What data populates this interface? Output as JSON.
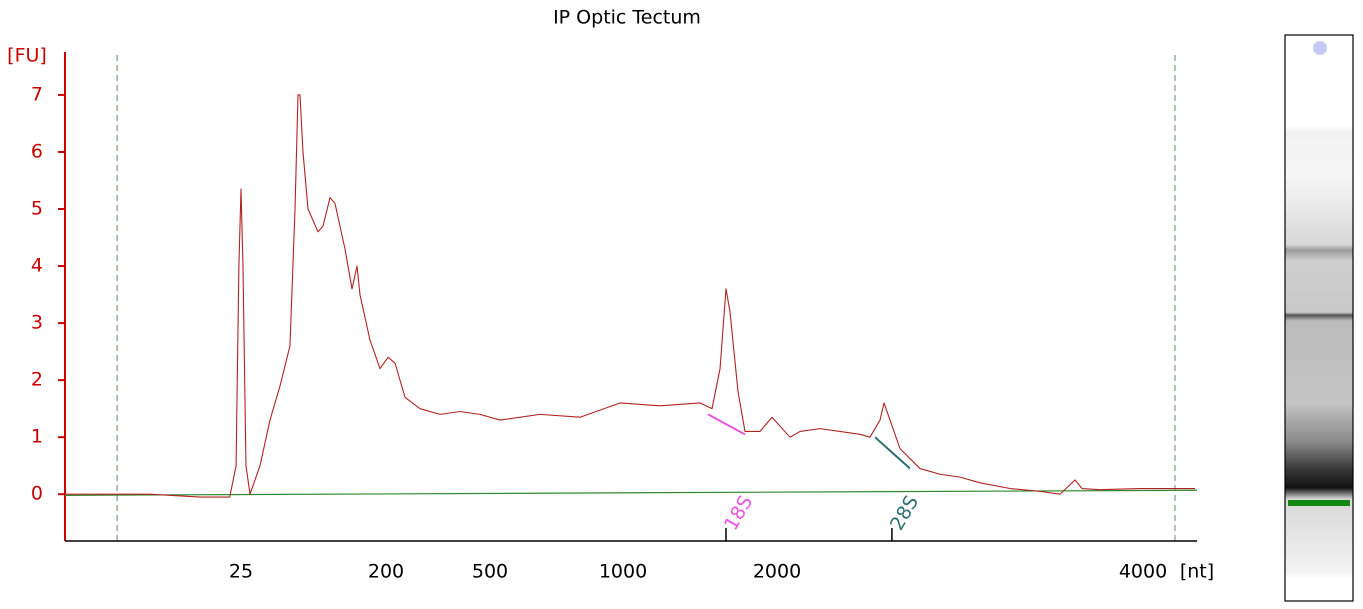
{
  "chart_data": {
    "type": "line",
    "title": "IP Optic Tectum",
    "ylabel": "[FU]",
    "xlabel": "[nt]",
    "ylabel_color": "#cc0000",
    "xlim": [
      0,
      4500
    ],
    "xticks": [
      25,
      200,
      500,
      1000,
      2000,
      4000
    ],
    "ylim": [
      -0.82,
      7.7
    ],
    "yticks": [
      0,
      1,
      2,
      3,
      4,
      5,
      6,
      7
    ],
    "marker_lines": [
      7.4,
      4296
    ],
    "marker_color": "#5a8f5a",
    "baseline": {
      "x": [
        0,
        4500
      ],
      "values": [
        -0.02,
        0.07
      ],
      "color": "#2e8b2e"
    },
    "series": [
      {
        "color": "#b22222",
        "x": [
          0,
          5,
          12,
          19.2,
          23.4,
          24.3,
          24.7,
          25,
          27.4,
          31.0,
          35.9,
          47.9,
          60.0,
          72.1,
          84.1,
          90.2,
          93.8,
          96.2,
          99.8,
          105.9,
          117.9,
          124.0,
          132.4,
          138.4,
          150.5,
          159.0,
          165.0,
          168.6,
          180.7,
          192.8,
          205.8,
          226.0,
          254.8,
          298.1,
          355.8,
          413.5,
          471.2,
          537.6,
          688.0,
          838.3,
          988.7,
          1240.3,
          1500.0,
          1578.0,
          1630.0,
          1668.8,
          1694.8,
          1746.8,
          1792.2,
          1889.6,
          1967.5,
          2071.0,
          2125.7,
          2235.0,
          2344.3,
          2453.6,
          2508.2,
          2562.8,
          2584.7,
          2617.5,
          2672.1,
          2781.4,
          2890.7,
          2999.9,
          3109.2,
          3273.2,
          3437.2,
          3546.4,
          3628.4,
          3666.7,
          3765.0,
          3983.6,
          4250,
          4481.5
        ],
        "values": [
          0.0,
          0.0,
          0.0,
          -0.05,
          -0.05,
          0.5,
          4.0,
          5.35,
          4.0,
          0.5,
          0.0,
          0.5,
          1.3,
          1.9,
          2.6,
          5.0,
          7.0,
          7.0,
          6.0,
          5.0,
          4.6,
          4.7,
          5.2,
          5.1,
          4.3,
          3.6,
          4.0,
          3.5,
          2.7,
          2.2,
          2.4,
          2.3,
          1.7,
          1.5,
          1.4,
          1.45,
          1.4,
          1.3,
          1.4,
          1.35,
          1.6,
          1.55,
          1.6,
          1.5,
          2.2,
          3.6,
          3.2,
          1.8,
          1.1,
          1.1,
          1.35,
          1.0,
          1.1,
          1.15,
          1.1,
          1.05,
          1.0,
          1.3,
          1.6,
          1.3,
          0.8,
          0.45,
          0.35,
          0.3,
          0.2,
          0.1,
          0.05,
          0.0,
          0.25,
          0.1,
          0.08,
          0.1,
          0.1,
          0.1
        ]
      }
    ],
    "annotations": [
      {
        "text": "18S",
        "x": 1668.8,
        "color": "#ee55dd",
        "line_x": [
          1552,
          1792
        ],
        "line_y": [
          1.4,
          1.05
        ]
      },
      {
        "text": "28S",
        "x": 2628,
        "color": "#2f6f6f",
        "line_x": [
          2535.5,
          2726.8
        ],
        "line_y": [
          1.0,
          0.45
        ]
      }
    ]
  }
}
